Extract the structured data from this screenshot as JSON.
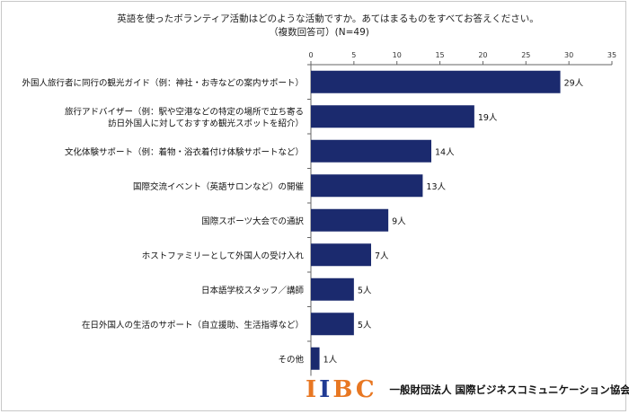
{
  "title": {
    "line1": "英語を使ったボランティア活動はどのような活動ですか。あてはまるものをすべてお答えください。",
    "line2": "（複数回答可）(N=49)"
  },
  "chart_data": {
    "type": "bar",
    "orientation": "horizontal",
    "categories": [
      [
        "外国人旅行者に同行の観光ガイド（例：神社・お寺などの案内サポート）"
      ],
      [
        "旅行アドバイザー（例：駅や空港などの特定の場所で立ち寄る",
        "訪日外国人に対しておすすめ観光スポットを紹介）"
      ],
      [
        "文化体験サポート（例：着物・浴衣着付け体験サポートなど）"
      ],
      [
        "国際交流イベント（英語サロンなど）の開催"
      ],
      [
        "国際スポーツ大会での通訳"
      ],
      [
        "ホストファミリーとして外国人の受け入れ"
      ],
      [
        "日本語学校スタッフ／講師"
      ],
      [
        "在日外国人の生活のサポート（自立援助、生活指導など）"
      ],
      [
        "その他"
      ]
    ],
    "values": [
      29,
      19,
      14,
      13,
      9,
      7,
      5,
      5,
      1
    ],
    "data_labels": [
      "29人",
      "19人",
      "14人",
      "13人",
      "9人",
      "7人",
      "5人",
      "5人",
      "1人"
    ],
    "xlim": [
      0,
      35
    ],
    "xticks": [
      "0",
      "5",
      "10",
      "15",
      "20",
      "25",
      "30",
      "35"
    ],
    "axis_position": "top",
    "bar_color": "#1b2a6e",
    "grid": false
  },
  "footer": {
    "logo_text": "IIBC",
    "org_name": "一般財団法人 国際ビジネスコミュニケーション協会",
    "logo_orange": "#e87722",
    "logo_blue": "#1f3a93"
  }
}
